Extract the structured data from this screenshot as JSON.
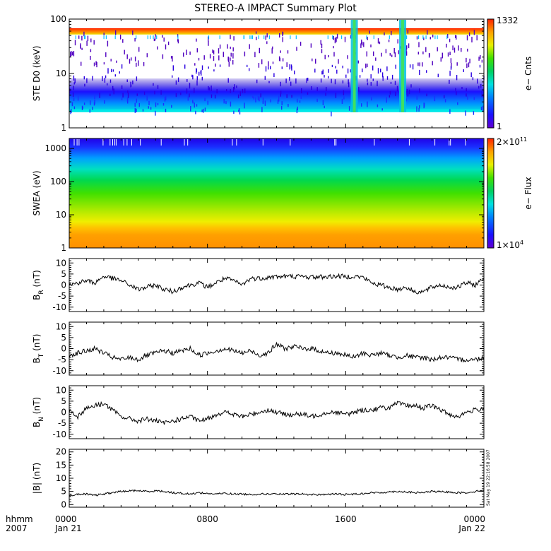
{
  "title": "STEREO-A IMPACT Summary Plot",
  "timestamp": "Sat May 19 22:16:58 2007",
  "time_axis": {
    "row1_label": "hhmm",
    "row2_label": "2007",
    "ticks": [
      {
        "hhmm": "0000",
        "date": "Jan 21",
        "hour": 0
      },
      {
        "hhmm": "0800",
        "date": "",
        "hour": 8
      },
      {
        "hhmm": "1600",
        "date": "",
        "hour": 16
      },
      {
        "hhmm": "0000",
        "date": "Jan 22",
        "hour": 24
      }
    ]
  },
  "chart_data": [
    {
      "type": "heatmap",
      "panel": "ste",
      "ylabel": "STE D0 (keV)",
      "yscale": "log",
      "ylim": [
        1,
        100
      ],
      "yticks": [
        "1",
        "10",
        "100"
      ],
      "xlim": [
        0,
        24
      ],
      "colorbar": {
        "label": "e− Cnts",
        "max_label": "1332",
        "min_label": "1",
        "range": [
          1,
          1332
        ]
      },
      "features": {
        "bursts_hours": [
          16.5,
          19.3
        ]
      }
    },
    {
      "type": "heatmap",
      "panel": "swea",
      "ylabel": "SWEA (eV)",
      "yscale": "log",
      "ylim": [
        1,
        2000
      ],
      "yticks": [
        "1",
        "10",
        "100",
        "1000"
      ],
      "xlim": [
        0,
        24
      ],
      "colorbar": {
        "label": "e− Flux",
        "max_base": "2×10",
        "max_exp": "11",
        "min_base": "1×10",
        "min_exp": "4",
        "range": [
          10000,
          200000000000
        ]
      }
    },
    {
      "type": "line",
      "panel": "br",
      "ylabel": {
        "main": "B",
        "sub": "R",
        "unit": " (nT)"
      },
      "ylim": [
        -12,
        12
      ],
      "yticks": [
        -10,
        -5,
        0,
        5,
        10
      ],
      "xlim": [
        0,
        24
      ],
      "x": [
        0,
        0.5,
        1,
        1.5,
        2,
        2.5,
        3,
        3.5,
        4,
        4.5,
        5,
        5.5,
        6,
        6.5,
        7,
        7.5,
        8,
        8.5,
        9,
        9.5,
        10,
        10.5,
        11,
        11.5,
        12,
        12.5,
        13,
        13.5,
        14,
        14.5,
        15,
        15.5,
        16,
        16.5,
        17,
        17.5,
        18,
        18.5,
        19,
        19.5,
        20,
        20.5,
        21,
        21.5,
        22,
        22.5,
        23,
        23.5,
        24
      ],
      "y": [
        0,
        1,
        2,
        1,
        4,
        3,
        2,
        0,
        -2,
        -1,
        0,
        -2,
        -3,
        -1,
        0,
        1,
        -1,
        1,
        3,
        2,
        0,
        3,
        3,
        3.5,
        3.8,
        3.9,
        4,
        3.8,
        3.6,
        3.7,
        3.8,
        4,
        3.8,
        4,
        3.5,
        1,
        0,
        -1,
        -2,
        -1,
        -3,
        -3,
        -1,
        0,
        -1,
        -1,
        1,
        0,
        3
      ]
    },
    {
      "type": "line",
      "panel": "bt",
      "ylabel": {
        "main": "B",
        "sub": "T",
        "unit": " (nT)"
      },
      "ylim": [
        -12,
        12
      ],
      "yticks": [
        -10,
        -5,
        0,
        5,
        10
      ],
      "xlim": [
        0,
        24
      ],
      "x": [
        0,
        0.5,
        1,
        1.5,
        2,
        2.5,
        3,
        3.5,
        4,
        4.5,
        5,
        5.5,
        6,
        6.5,
        7,
        7.5,
        8,
        8.5,
        9,
        9.5,
        10,
        10.5,
        11,
        11.5,
        12,
        12.5,
        13,
        13.5,
        14,
        14.5,
        15,
        15.5,
        16,
        16.5,
        17,
        17.5,
        18,
        18.5,
        19,
        19.5,
        20,
        20.5,
        21,
        21.5,
        22,
        22.5,
        23,
        23.5,
        24
      ],
      "y": [
        -3,
        -2,
        -1,
        0,
        -2,
        -4,
        -5,
        -4,
        -5,
        -3,
        -2,
        -1,
        -2,
        -1,
        0,
        -3,
        -2,
        -1,
        0,
        -1,
        -2,
        -1,
        -3,
        -2,
        2,
        0,
        1,
        0,
        0,
        -1,
        -2,
        -2,
        -3,
        -4,
        -2,
        -3,
        -2,
        -3,
        -4,
        -3,
        -4,
        -4,
        -5,
        -4,
        -4,
        -5,
        -5,
        -5,
        -4
      ]
    },
    {
      "type": "line",
      "panel": "bn",
      "ylabel": {
        "main": "B",
        "sub": "N",
        "unit": " (nT)"
      },
      "ylim": [
        -12,
        12
      ],
      "yticks": [
        -10,
        -5,
        0,
        5,
        10
      ],
      "xlim": [
        0,
        24
      ],
      "x": [
        0,
        0.5,
        1,
        1.5,
        2,
        2.5,
        3,
        3.5,
        4,
        4.5,
        5,
        5.5,
        6,
        6.5,
        7,
        7.5,
        8,
        8.5,
        9,
        9.5,
        10,
        10.5,
        11,
        11.5,
        12,
        12.5,
        13,
        13.5,
        14,
        14.5,
        15,
        15.5,
        16,
        16.5,
        17,
        17.5,
        18,
        18.5,
        19,
        19.5,
        20,
        20.5,
        21,
        21.5,
        22,
        22.5,
        23,
        23.5,
        24
      ],
      "y": [
        1,
        -2,
        2,
        3,
        4,
        1,
        -2,
        -3,
        -4,
        -3,
        -4,
        -5,
        -4,
        -3,
        -2,
        -4,
        -3,
        -1,
        0,
        -1,
        -2,
        -1,
        0,
        1,
        0,
        -1,
        -1,
        -1,
        -2,
        -1,
        0,
        0,
        -1,
        0,
        1,
        1,
        2,
        2,
        4,
        3,
        3,
        2,
        3,
        1,
        -1,
        -2,
        0,
        1,
        2
      ]
    },
    {
      "type": "line",
      "panel": "bmag",
      "ylabel": {
        "main": "|B|",
        "sub": "",
        "unit": " (nT)"
      },
      "ylim": [
        -1,
        21
      ],
      "yticks": [
        0,
        5,
        10,
        15,
        20
      ],
      "xlim": [
        0,
        24
      ],
      "x": [
        0,
        0.5,
        1,
        1.5,
        2,
        2.5,
        3,
        3.5,
        4,
        4.5,
        5,
        5.5,
        6,
        6.5,
        7,
        7.5,
        8,
        8.5,
        9,
        9.5,
        10,
        10.5,
        11,
        11.5,
        12,
        12.5,
        13,
        13.5,
        14,
        14.5,
        15,
        15.5,
        16,
        16.5,
        17,
        17.5,
        18,
        18.5,
        19,
        19.5,
        20,
        20.5,
        21,
        21.5,
        22,
        22.5,
        23,
        23.5,
        24
      ],
      "y": [
        3.5,
        3.8,
        4,
        3.5,
        4,
        4.5,
        5,
        5.2,
        5.3,
        5,
        5.2,
        5,
        4.5,
        4.3,
        4,
        4.5,
        4.2,
        4,
        4.3,
        4,
        4,
        3.8,
        4,
        4,
        4,
        3.9,
        4,
        4,
        3.8,
        3.8,
        3.9,
        4,
        3.8,
        4,
        4.2,
        4.5,
        4.5,
        4.8,
        5,
        4.8,
        4.5,
        4.6,
        5,
        4.8,
        4.8,
        4.5,
        4.5,
        5,
        5.5
      ]
    }
  ]
}
